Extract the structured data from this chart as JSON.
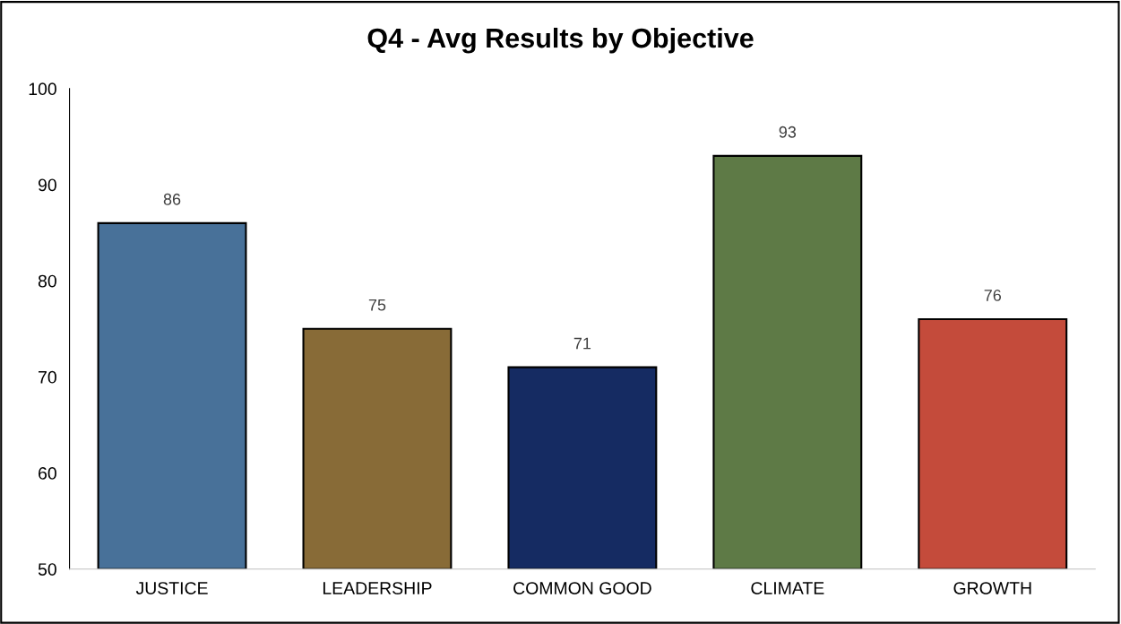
{
  "chart_data": {
    "type": "bar",
    "title": "Q4 - Avg Results by Objective",
    "categories": [
      "JUSTICE",
      "LEADERSHIP",
      "COMMON GOOD",
      "CLIMATE",
      "GROWTH"
    ],
    "values": [
      86,
      75,
      71,
      93,
      76
    ],
    "colors": [
      "#487199",
      "#886b37",
      "#152b62",
      "#5e7a46",
      "#c44b3b"
    ],
    "ylim": [
      50,
      100
    ],
    "yticks": [
      50,
      60,
      70,
      80,
      90,
      100
    ],
    "data_labels": true,
    "grid": false,
    "legend": false
  }
}
